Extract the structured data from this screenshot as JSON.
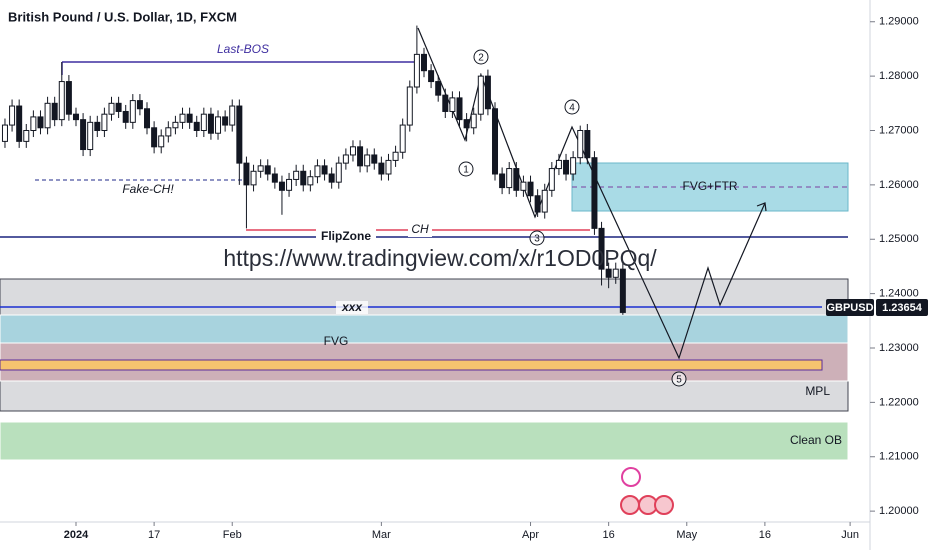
{
  "chart_data": {
    "type": "candlestick",
    "title": "British Pound / U.S. Dollar, 1D, FXCM",
    "symbol": "GBPUSD",
    "watermark": "https://www.tradingview.com/x/r1OD0PQq/",
    "x": [
      -10,
      -9,
      -8,
      -7,
      -6,
      -5,
      -4,
      -3,
      -2,
      -1,
      0,
      1,
      2,
      3,
      4,
      5,
      6,
      7,
      8,
      9,
      10,
      11,
      12,
      13,
      14,
      15,
      16,
      17,
      18,
      19,
      20,
      21,
      22,
      23,
      24,
      25,
      26,
      27,
      28,
      29,
      30,
      31,
      32,
      33,
      34,
      35,
      36,
      37,
      38,
      39,
      40,
      41,
      42,
      43,
      44,
      45,
      46,
      47,
      48,
      49,
      50,
      51,
      52,
      53,
      54,
      55,
      56,
      57,
      58,
      59,
      60,
      61,
      62,
      63,
      64,
      65,
      66,
      67,
      68,
      69,
      70,
      71,
      72,
      73,
      74,
      75,
      76,
      77
    ],
    "open": [
      1.268,
      1.271,
      1.2745,
      1.268,
      1.27,
      1.2725,
      1.2705,
      1.275,
      1.272,
      1.279,
      1.273,
      1.272,
      1.2665,
      1.2715,
      1.27,
      1.273,
      1.275,
      1.2735,
      1.2715,
      1.2755,
      1.274,
      1.2705,
      1.267,
      1.269,
      1.2705,
      1.2715,
      1.273,
      1.2715,
      1.27,
      1.273,
      1.2695,
      1.2725,
      1.271,
      1.2745,
      1.264,
      1.26,
      1.2625,
      1.2635,
      1.262,
      1.2605,
      1.259,
      1.261,
      1.2625,
      1.26,
      1.2615,
      1.2635,
      1.262,
      1.2605,
      1.264,
      1.2655,
      1.267,
      1.2635,
      1.2655,
      1.264,
      1.262,
      1.2645,
      1.266,
      1.271,
      1.278,
      1.284,
      1.281,
      1.279,
      1.2765,
      1.2735,
      1.276,
      1.272,
      1.2705,
      1.273,
      1.28,
      1.274,
      1.262,
      1.2595,
      1.263,
      1.259,
      1.2605,
      1.258,
      1.255,
      1.259,
      1.263,
      1.2645,
      1.262,
      1.265,
      1.27,
      1.265,
      1.252,
      1.2445,
      1.243,
      1.2445
    ],
    "high": [
      1.2722,
      1.2757,
      1.2757,
      1.2712,
      1.2737,
      1.2737,
      1.2762,
      1.2762,
      1.2826,
      1.2802,
      1.2742,
      1.2732,
      1.2727,
      1.2727,
      1.2742,
      1.2762,
      1.2762,
      1.2747,
      1.2767,
      1.2767,
      1.2752,
      1.2717,
      1.2702,
      1.2717,
      1.2727,
      1.2742,
      1.2742,
      1.2727,
      1.2742,
      1.2742,
      1.2737,
      1.2737,
      1.2757,
      1.2757,
      1.2652,
      1.2637,
      1.2647,
      1.2647,
      1.2632,
      1.2617,
      1.2622,
      1.2637,
      1.2637,
      1.2627,
      1.2647,
      1.2647,
      1.2632,
      1.2652,
      1.2667,
      1.2682,
      1.2682,
      1.2667,
      1.2667,
      1.2652,
      1.2657,
      1.2672,
      1.2722,
      1.2792,
      1.2893,
      1.2852,
      1.2822,
      1.2802,
      1.2777,
      1.2772,
      1.2772,
      1.2732,
      1.2742,
      1.2805,
      1.2812,
      1.2752,
      1.2632,
      1.2642,
      1.2642,
      1.2617,
      1.2617,
      1.2592,
      1.2602,
      1.2642,
      1.2657,
      1.2657,
      1.2662,
      1.2709,
      1.2712,
      1.2662,
      1.2532,
      1.2457,
      1.2457,
      1.2457
    ],
    "low": [
      1.2668,
      1.2698,
      1.2668,
      1.2668,
      1.2688,
      1.2693,
      1.2693,
      1.2708,
      1.2708,
      1.2718,
      1.2708,
      1.2653,
      1.2653,
      1.2688,
      1.2688,
      1.2718,
      1.2723,
      1.2703,
      1.2703,
      1.2728,
      1.2693,
      1.2658,
      1.2658,
      1.2678,
      1.2693,
      1.2703,
      1.2703,
      1.2688,
      1.2688,
      1.2683,
      1.2683,
      1.2698,
      1.2698,
      1.26,
      1.252,
      1.2588,
      1.2613,
      1.2608,
      1.2593,
      1.2545,
      1.2578,
      1.2598,
      1.2588,
      1.2588,
      1.2603,
      1.2608,
      1.2593,
      1.2593,
      1.2628,
      1.2643,
      1.2623,
      1.2623,
      1.2628,
      1.2608,
      1.2608,
      1.2633,
      1.2648,
      1.2698,
      1.2768,
      1.2798,
      1.2778,
      1.2753,
      1.2723,
      1.2723,
      1.2708,
      1.268,
      1.2693,
      1.2718,
      1.2728,
      1.2608,
      1.2583,
      1.2583,
      1.2578,
      1.2578,
      1.2568,
      1.2541,
      1.2538,
      1.2578,
      1.2618,
      1.2608,
      1.2608,
      1.2638,
      1.2638,
      1.2508,
      1.2415,
      1.241,
      1.2418,
      1.2361
    ],
    "close": [
      1.271,
      1.2745,
      1.268,
      1.27,
      1.2725,
      1.2705,
      1.275,
      1.272,
      1.279,
      1.273,
      1.272,
      1.2665,
      1.2715,
      1.27,
      1.273,
      1.275,
      1.2735,
      1.2715,
      1.2755,
      1.274,
      1.2705,
      1.267,
      1.269,
      1.2705,
      1.2715,
      1.273,
      1.2715,
      1.27,
      1.273,
      1.2695,
      1.2725,
      1.271,
      1.2745,
      1.264,
      1.26,
      1.2625,
      1.2635,
      1.262,
      1.2605,
      1.259,
      1.261,
      1.2625,
      1.26,
      1.2615,
      1.2635,
      1.262,
      1.2605,
      1.264,
      1.2655,
      1.267,
      1.2635,
      1.2655,
      1.264,
      1.262,
      1.2645,
      1.266,
      1.271,
      1.278,
      1.284,
      1.281,
      1.279,
      1.2765,
      1.2735,
      1.276,
      1.272,
      1.2705,
      1.273,
      1.28,
      1.274,
      1.262,
      1.2595,
      1.263,
      1.259,
      1.2605,
      1.258,
      1.255,
      1.259,
      1.263,
      1.2645,
      1.262,
      1.265,
      1.27,
      1.265,
      1.252,
      1.2445,
      1.243,
      1.2445,
      1.23654
    ],
    "up_color": "#ffffff",
    "down_color": "#131722",
    "xlim": [
      -10.7,
      111.8
    ],
    "ylim": [
      1.198,
      1.294
    ],
    "xticks": [
      {
        "value": 0,
        "label": "2024"
      },
      {
        "value": 11,
        "label": "17"
      },
      {
        "value": 22,
        "label": "Feb"
      },
      {
        "value": 43,
        "label": "Mar"
      },
      {
        "value": 64,
        "label": "Apr"
      },
      {
        "value": 75,
        "label": "16"
      },
      {
        "value": 86,
        "label": "May"
      },
      {
        "value": 97,
        "label": "16"
      },
      {
        "value": 109,
        "label": "Jun"
      }
    ],
    "yticks": [
      {
        "value": 1.29,
        "label": "1.29000"
      },
      {
        "value": 1.28,
        "label": "1.28000"
      },
      {
        "value": 1.27,
        "label": "1.27000"
      },
      {
        "value": 1.26,
        "label": "1.26000"
      },
      {
        "value": 1.25,
        "label": "1.25000"
      },
      {
        "value": 1.24,
        "label": "1.24000"
      },
      {
        "value": 1.23,
        "label": "1.23000"
      },
      {
        "value": 1.22,
        "label": "1.22000"
      },
      {
        "value": 1.21,
        "label": "1.21000"
      },
      {
        "value": 1.2,
        "label": "1.20000"
      }
    ],
    "annotations": {
      "last_bos": "Last-BOS",
      "fake_ch": "Fake-CH!",
      "flip_zone": "FlipZone",
      "ch": "CH",
      "xxx": "xxx",
      "fvg": "FVG",
      "mpl": "MPL",
      "clean_ob": "Clean OB",
      "fvg_ftr": "FVG+FTR"
    },
    "waves": [
      "1",
      "2",
      "3",
      "4",
      "5"
    ]
  }
}
